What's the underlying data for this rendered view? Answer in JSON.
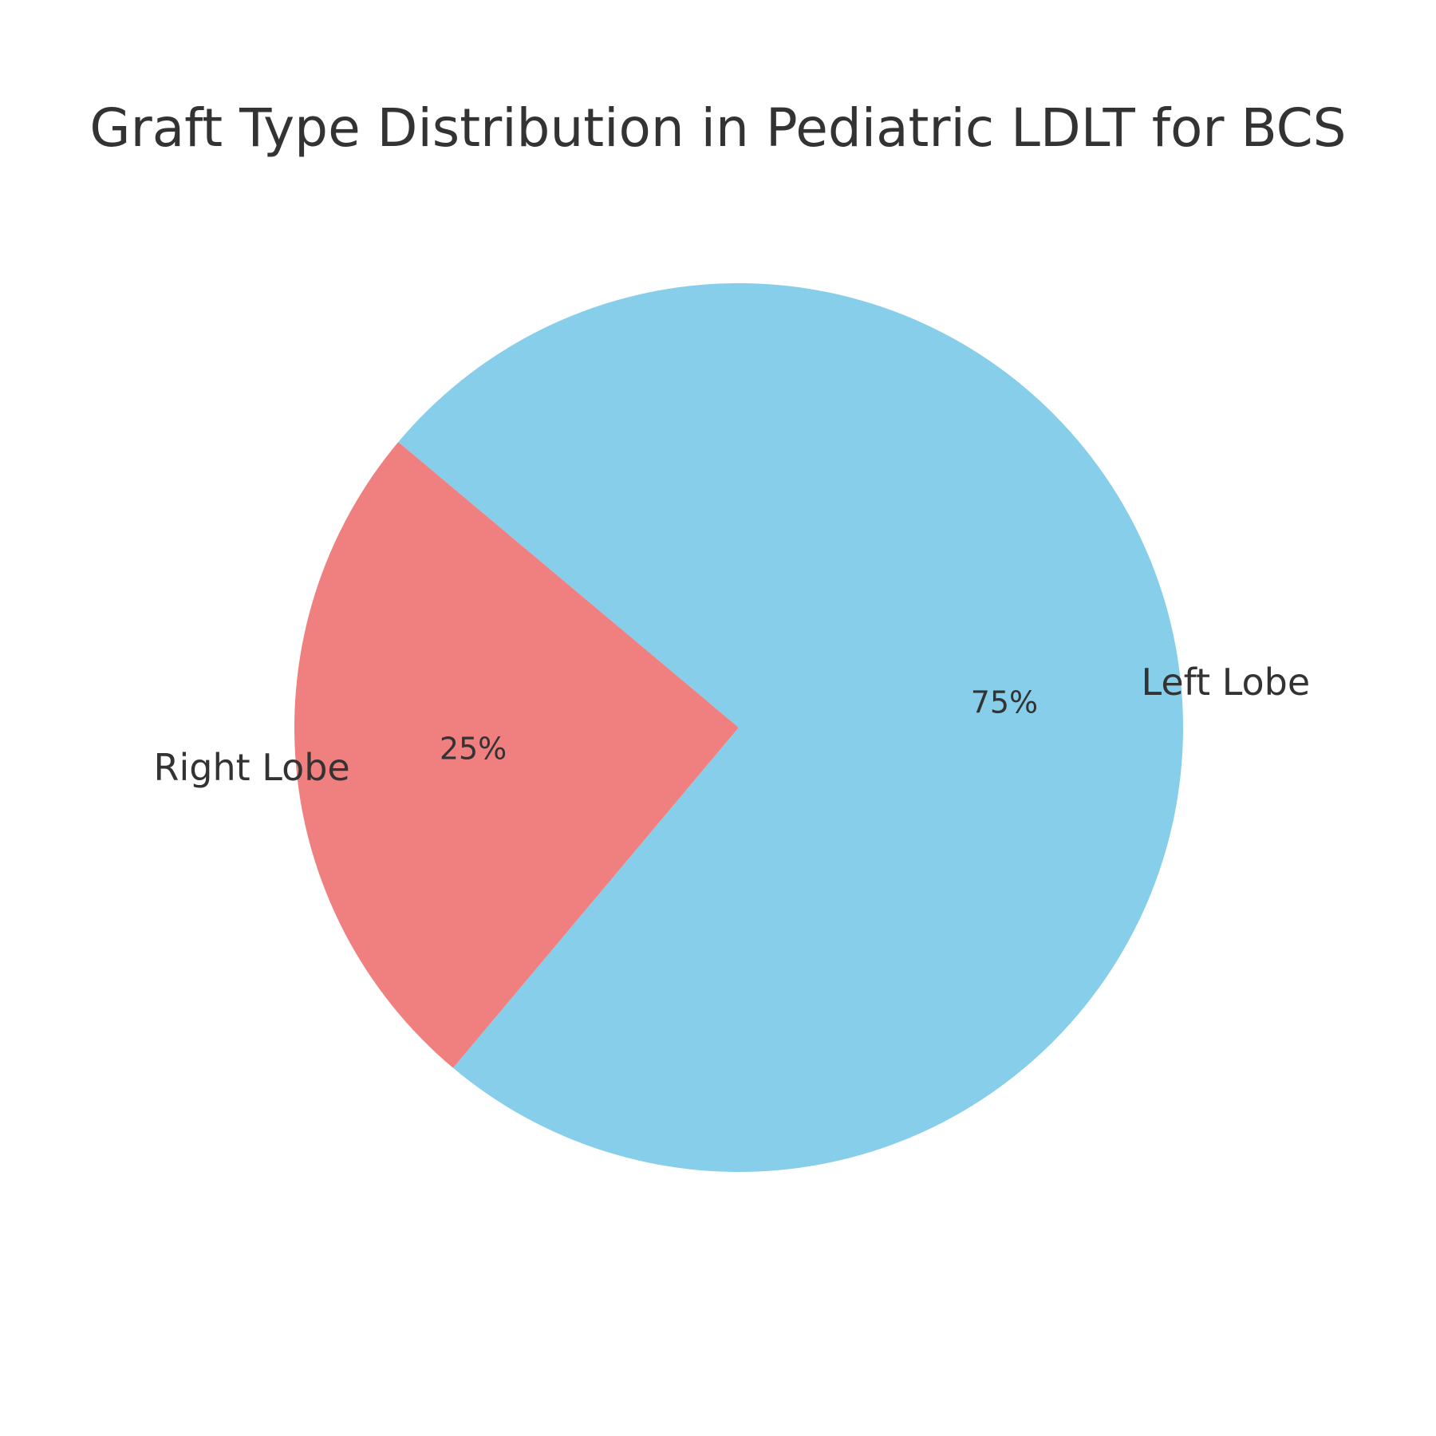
{
  "chart_data": {
    "type": "pie",
    "title": "Graft Type Distribution in Pediatric LDLT for BCS",
    "categories": [
      "Right Lobe",
      "Left Lobe"
    ],
    "values": [
      25,
      75
    ],
    "percent_labels": [
      "25%",
      "75%"
    ],
    "colors": [
      "#f08080",
      "#87ceeb"
    ],
    "start_angle_deg": 140,
    "direction": "counterclockwise",
    "legend": "none"
  }
}
